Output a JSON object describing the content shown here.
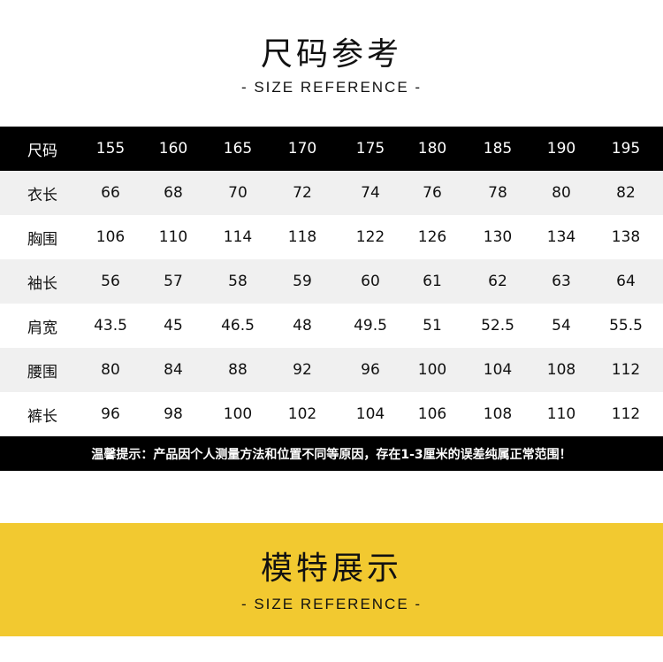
{
  "header": {
    "title": "尺码参考",
    "subtitle": "- SIZE REFERENCE -"
  },
  "size_table": {
    "columns": [
      "尺码",
      "155",
      "160",
      "165",
      "170",
      "175",
      "180",
      "185",
      "190",
      "195"
    ],
    "rows": [
      [
        "衣长",
        "66",
        "68",
        "70",
        "72",
        "74",
        "76",
        "78",
        "80",
        "82"
      ],
      [
        "胸围",
        "106",
        "110",
        "114",
        "118",
        "122",
        "126",
        "130",
        "134",
        "138"
      ],
      [
        "袖长",
        "56",
        "57",
        "58",
        "59",
        "60",
        "61",
        "62",
        "63",
        "64"
      ],
      [
        "肩宽",
        "43.5",
        "45",
        "46.5",
        "48",
        "49.5",
        "51",
        "52.5",
        "54",
        "55.5"
      ],
      [
        "腰围",
        "80",
        "84",
        "88",
        "92",
        "96",
        "100",
        "104",
        "108",
        "112"
      ],
      [
        "裤长",
        "96",
        "98",
        "100",
        "102",
        "104",
        "106",
        "108",
        "110",
        "112"
      ]
    ]
  },
  "notice": "温馨提示：产品因个人测量方法和位置不同等原因，存在1-3厘米的误差纯属正常范围！",
  "model_section": {
    "title": "模特展示",
    "subtitle": "- SIZE REFERENCE -",
    "background": "#f2c930"
  }
}
